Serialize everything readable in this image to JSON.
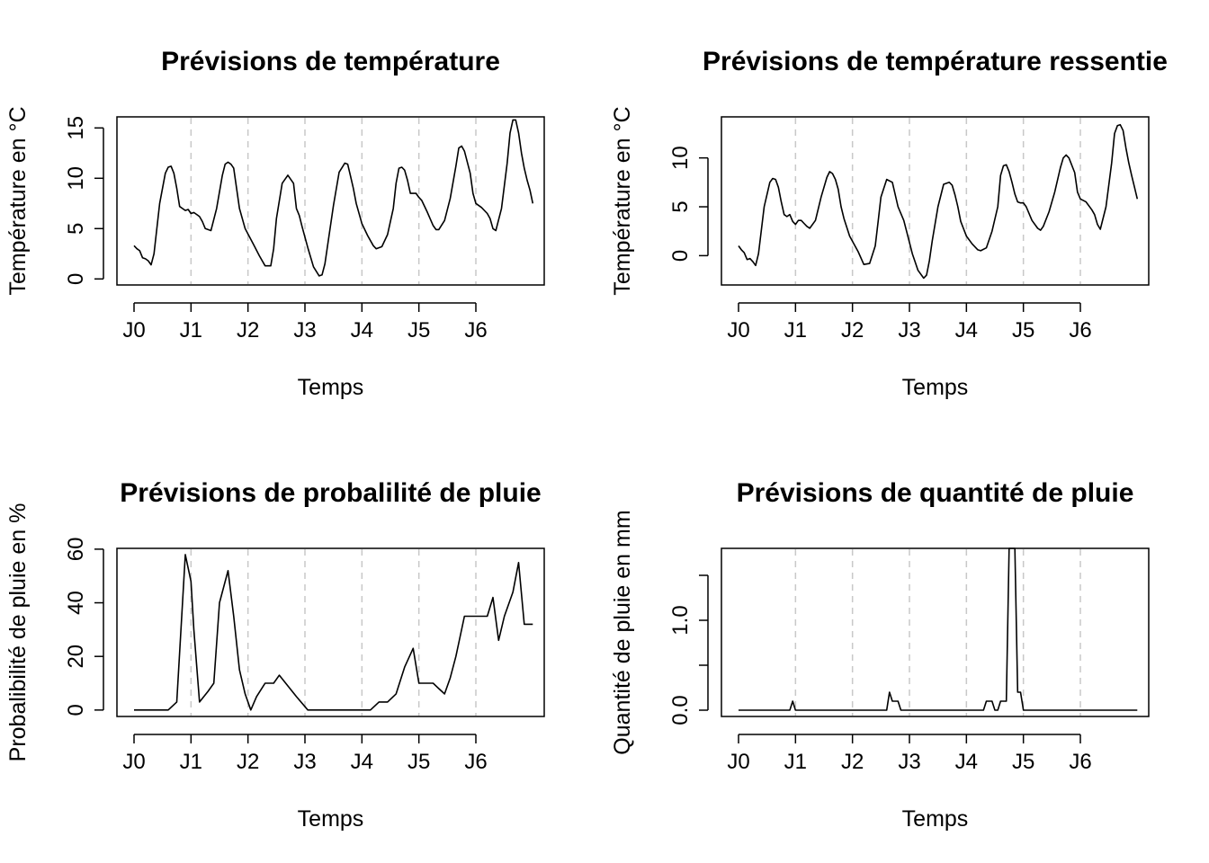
{
  "chart_data": [
    {
      "type": "line",
      "title": "Prévisions de température",
      "xlabel": "Temps",
      "ylabel": "Température en °C",
      "categories": [
        "J0",
        "J1",
        "J2",
        "J3",
        "J4",
        "J5",
        "J6"
      ],
      "xlim": [
        -0.3,
        7.2
      ],
      "ylim": [
        -0.6,
        16.1
      ],
      "yticks": [
        0,
        5,
        10,
        15
      ],
      "ytick_labels": [
        "0",
        "5",
        "10",
        "15"
      ],
      "vlines": [
        1,
        2,
        3,
        4,
        5,
        6
      ],
      "grid": "vertical-dashed",
      "x": [
        0,
        0.05,
        0.1,
        0.15,
        0.2,
        0.25,
        0.3,
        0.35,
        0.45,
        0.55,
        0.6,
        0.65,
        0.7,
        0.75,
        0.8,
        0.85,
        0.9,
        0.95,
        1.0,
        1.05,
        1.1,
        1.15,
        1.2,
        1.25,
        1.35,
        1.45,
        1.55,
        1.6,
        1.65,
        1.7,
        1.75,
        1.8,
        1.85,
        1.95,
        2.1,
        2.2,
        2.3,
        2.4,
        2.45,
        2.5,
        2.6,
        2.7,
        2.8,
        2.85,
        2.9,
        2.95,
        3.05,
        3.15,
        3.25,
        3.3,
        3.35,
        3.4,
        3.5,
        3.6,
        3.7,
        3.75,
        3.8,
        3.85,
        3.9,
        4.0,
        4.1,
        4.2,
        4.25,
        4.35,
        4.45,
        4.55,
        4.6,
        4.65,
        4.7,
        4.75,
        4.8,
        4.85,
        4.9,
        4.95,
        5.0,
        5.05,
        5.15,
        5.25,
        5.3,
        5.35,
        5.45,
        5.55,
        5.65,
        5.7,
        5.75,
        5.8,
        5.9,
        5.95,
        6.0,
        6.1,
        6.2,
        6.25,
        6.3,
        6.35,
        6.45,
        6.55,
        6.6,
        6.65,
        6.7,
        6.75,
        6.8,
        6.85,
        6.9,
        6.95,
        7.0
      ],
      "y": [
        3.3,
        3.0,
        2.8,
        2.1,
        2.0,
        1.8,
        1.4,
        2.5,
        7.5,
        10.5,
        11.1,
        11.2,
        10.5,
        9.0,
        7.2,
        7.0,
        6.8,
        6.9,
        6.5,
        6.6,
        6.4,
        6.2,
        5.7,
        5.0,
        4.8,
        7.0,
        10.3,
        11.4,
        11.6,
        11.4,
        11.0,
        9.0,
        7.0,
        5.0,
        3.4,
        2.3,
        1.3,
        1.3,
        3.0,
        6.0,
        9.5,
        10.3,
        9.5,
        7.0,
        6.3,
        5.2,
        3.1,
        1.2,
        0.3,
        0.4,
        1.5,
        3.4,
        7.3,
        10.6,
        11.5,
        11.4,
        10.2,
        9.0,
        7.5,
        5.5,
        4.3,
        3.3,
        3.0,
        3.2,
        4.4,
        7.0,
        9.5,
        11.0,
        11.1,
        10.8,
        9.8,
        8.5,
        8.5,
        8.5,
        8.1,
        7.8,
        6.6,
        5.3,
        4.9,
        4.9,
        5.8,
        8.0,
        11.2,
        13.0,
        13.2,
        12.7,
        10.5,
        8.5,
        7.5,
        7.1,
        6.5,
        6.0,
        5.0,
        4.8,
        7.0,
        11.5,
        14.5,
        15.8,
        15.8,
        14.5,
        12.5,
        11.0,
        9.8,
        8.8,
        7.5
      ]
    },
    {
      "type": "line",
      "title": "Prévisions de température ressentie",
      "xlabel": "Temps",
      "ylabel": "Température en °C",
      "categories": [
        "J0",
        "J1",
        "J2",
        "J3",
        "J4",
        "J5",
        "J6"
      ],
      "xlim": [
        -0.3,
        7.2
      ],
      "ylim": [
        -3.0,
        14.2
      ],
      "yticks": [
        0,
        5,
        10
      ],
      "ytick_labels": [
        "0",
        "5",
        "10"
      ],
      "vlines": [
        1,
        2,
        3,
        4,
        5,
        6
      ],
      "grid": "vertical-dashed",
      "x": [
        0,
        0.05,
        0.1,
        0.15,
        0.2,
        0.25,
        0.3,
        0.35,
        0.45,
        0.55,
        0.6,
        0.65,
        0.7,
        0.75,
        0.8,
        0.85,
        0.9,
        0.95,
        1.0,
        1.05,
        1.1,
        1.15,
        1.2,
        1.25,
        1.35,
        1.45,
        1.55,
        1.6,
        1.65,
        1.7,
        1.75,
        1.8,
        1.85,
        1.95,
        2.1,
        2.2,
        2.3,
        2.4,
        2.45,
        2.5,
        2.6,
        2.7,
        2.8,
        2.85,
        2.9,
        2.95,
        3.05,
        3.15,
        3.25,
        3.3,
        3.35,
        3.4,
        3.5,
        3.6,
        3.7,
        3.75,
        3.8,
        3.85,
        3.9,
        4.0,
        4.1,
        4.2,
        4.25,
        4.35,
        4.45,
        4.55,
        4.6,
        4.65,
        4.7,
        4.75,
        4.8,
        4.85,
        4.9,
        4.95,
        5.0,
        5.05,
        5.15,
        5.25,
        5.3,
        5.35,
        5.45,
        5.55,
        5.65,
        5.7,
        5.75,
        5.8,
        5.9,
        5.95,
        6.0,
        6.1,
        6.2,
        6.25,
        6.3,
        6.35,
        6.45,
        6.55,
        6.6,
        6.65,
        6.7,
        6.75,
        6.8,
        6.85,
        6.9,
        6.95,
        7.0
      ],
      "y": [
        1.0,
        0.6,
        0.3,
        -0.4,
        -0.3,
        -0.6,
        -1.0,
        0.2,
        5.0,
        7.5,
        7.9,
        7.8,
        7.0,
        5.5,
        4.2,
        4.0,
        4.2,
        3.5,
        3.2,
        3.6,
        3.6,
        3.3,
        3.0,
        2.8,
        3.6,
        6.0,
        8.0,
        8.6,
        8.4,
        7.8,
        6.8,
        5.0,
        3.8,
        2.0,
        0.4,
        -0.9,
        -0.8,
        1.0,
        3.5,
        6.0,
        7.8,
        7.5,
        5.0,
        4.3,
        3.6,
        2.5,
        0.2,
        -1.5,
        -2.3,
        -2.0,
        -0.5,
        1.5,
        5.0,
        7.3,
        7.5,
        7.2,
        6.2,
        5.0,
        3.5,
        2.0,
        1.2,
        0.6,
        0.5,
        0.8,
        2.5,
        5.0,
        8.2,
        9.2,
        9.3,
        8.6,
        7.5,
        6.3,
        5.5,
        5.4,
        5.4,
        5.0,
        3.6,
        2.8,
        2.6,
        3.0,
        4.5,
        6.5,
        9.0,
        10.0,
        10.3,
        10.0,
        8.5,
        6.5,
        5.8,
        5.5,
        4.7,
        4.2,
        3.2,
        2.7,
        5.0,
        9.5,
        12.5,
        13.3,
        13.4,
        12.8,
        11.0,
        9.5,
        8.2,
        7.0,
        5.8
      ]
    },
    {
      "type": "line",
      "title": "Prévisions de probalilité de pluie",
      "xlabel": "Temps",
      "ylabel": "Probalibilité de pluie en %",
      "categories": [
        "J0",
        "J1",
        "J2",
        "J3",
        "J4",
        "J5",
        "J6"
      ],
      "xlim": [
        -0.3,
        7.2
      ],
      "ylim": [
        -2.4,
        60.3
      ],
      "yticks": [
        0,
        20,
        40,
        60
      ],
      "ytick_labels": [
        "0",
        "20",
        "40",
        "60"
      ],
      "vlines": [
        1,
        2,
        3,
        4,
        5,
        6
      ],
      "grid": "vertical-dashed",
      "x": [
        0,
        0.6,
        0.75,
        0.9,
        1.0,
        1.05,
        1.15,
        1.3,
        1.4,
        1.5,
        1.65,
        1.75,
        1.85,
        1.95,
        2.05,
        2.15,
        2.3,
        2.45,
        2.55,
        2.7,
        2.85,
        3.05,
        3.2,
        3.6,
        3.9,
        4.15,
        4.3,
        4.45,
        4.6,
        4.75,
        4.9,
        5.0,
        5.1,
        5.25,
        5.35,
        5.45,
        5.55,
        5.65,
        5.8,
        6.0,
        6.2,
        6.3,
        6.4,
        6.5,
        6.65,
        6.75,
        6.85,
        6.95,
        7.0
      ],
      "y": [
        0,
        0,
        3,
        58,
        48,
        30,
        3,
        7,
        10,
        40,
        52,
        35,
        15,
        6,
        0,
        5,
        10,
        10,
        13,
        9,
        5,
        0,
        0,
        0,
        0,
        0,
        3,
        3,
        6,
        16,
        23,
        10,
        10,
        10,
        8,
        6,
        12,
        20,
        35,
        35,
        35,
        42,
        26,
        35,
        44,
        55,
        32,
        32,
        32
      ]
    },
    {
      "type": "line",
      "title": "Prévisions de quantité de pluie",
      "xlabel": "Temps",
      "ylabel": "Quantité de pluie en mm",
      "categories": [
        "J0",
        "J1",
        "J2",
        "J3",
        "J4",
        "J5",
        "J6"
      ],
      "xlim": [
        -0.3,
        7.2
      ],
      "ylim": [
        -0.07,
        1.8
      ],
      "yticks": [
        0.0,
        0.5,
        1.0,
        1.5
      ],
      "ytick_labels": [
        "0.0",
        "",
        "1.0",
        ""
      ],
      "vlines": [
        1,
        2,
        3,
        4,
        5,
        6
      ],
      "grid": "vertical-dashed",
      "x": [
        0,
        0.9,
        0.95,
        1.0,
        2.6,
        2.65,
        2.7,
        2.8,
        2.85,
        4.3,
        4.35,
        4.45,
        4.5,
        4.55,
        4.6,
        4.7,
        4.75,
        4.85,
        4.9,
        4.95,
        5.0,
        7.0
      ],
      "y": [
        0,
        0,
        0.1,
        0,
        0,
        0.2,
        0.1,
        0.1,
        0,
        0,
        0.1,
        0.1,
        0,
        0,
        0.1,
        0.1,
        1.8,
        1.8,
        0.2,
        0.2,
        0,
        0
      ]
    }
  ]
}
